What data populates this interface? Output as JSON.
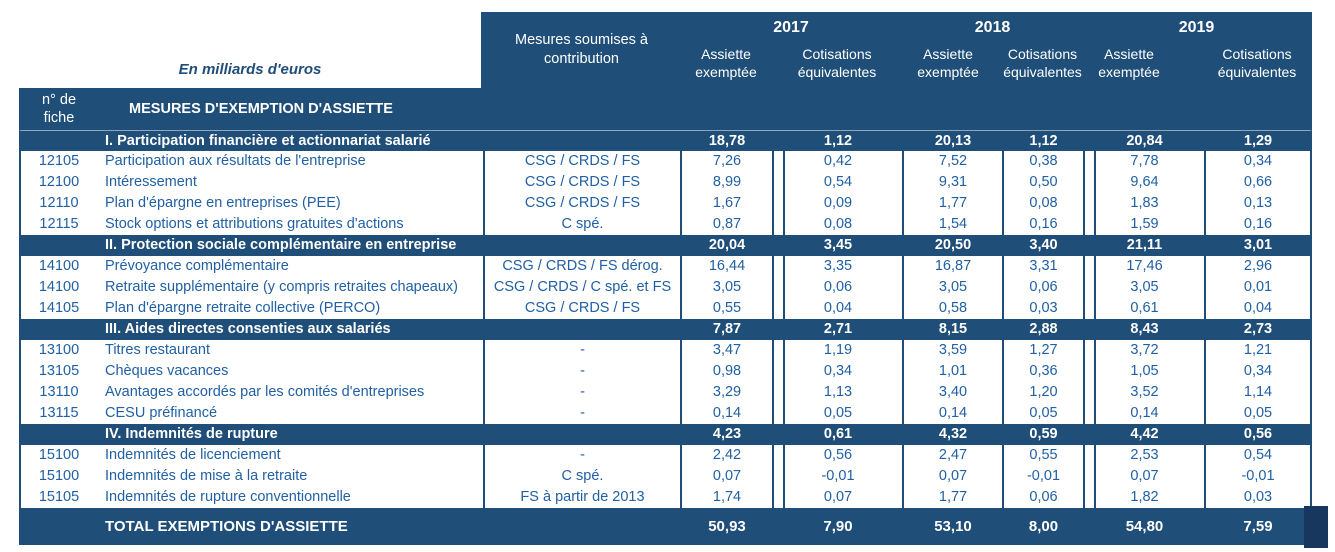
{
  "table": {
    "unit_label": "En milliards d'euros",
    "fiche_col_header": "n° de fiche",
    "measures_col_header": "MESURES D'EXEMPTION D'ASSIETTE",
    "contrib_col_header": "Mesures soumises à contribution",
    "years": [
      "2017",
      "2018",
      "2019"
    ],
    "sub_headers": [
      "Assiette exemptée",
      "Cotisations équivalentes"
    ],
    "colors": {
      "band_navy": "#1F4E79",
      "body_text_blue": "#2160A4",
      "band_text": "#FFFFFF"
    },
    "sections": [
      {
        "title": "I. Participation financière et actionnariat salarié",
        "totals": [
          "18,78",
          "1,12",
          "20,13",
          "1,12",
          "20,84",
          "1,29"
        ],
        "rows": [
          {
            "fiche": "12105",
            "label": "Participation aux résultats de l'entreprise",
            "contrib": "CSG / CRDS / FS",
            "values": [
              "7,26",
              "0,42",
              "7,52",
              "0,38",
              "7,78",
              "0,34"
            ]
          },
          {
            "fiche": "12100",
            "label": "Intéressement",
            "contrib": "CSG / CRDS / FS",
            "values": [
              "8,99",
              "0,54",
              "9,31",
              "0,50",
              "9,64",
              "0,66"
            ]
          },
          {
            "fiche": "12110",
            "label": "Plan d'épargne en entreprises (PEE)",
            "contrib": "CSG / CRDS / FS",
            "values": [
              "1,67",
              "0,09",
              "1,77",
              "0,08",
              "1,83",
              "0,13"
            ]
          },
          {
            "fiche": "12115",
            "label": "Stock options et attributions gratuites d'actions",
            "contrib": "C spé.",
            "values": [
              "0,87",
              "0,08",
              "1,54",
              "0,16",
              "1,59",
              "0,16"
            ]
          }
        ]
      },
      {
        "title": "II. Protection sociale complémentaire en entreprise",
        "totals": [
          "20,04",
          "3,45",
          "20,50",
          "3,40",
          "21,11",
          "3,01"
        ],
        "rows": [
          {
            "fiche": "14100",
            "label": "Prévoyance complémentaire",
            "contrib": "CSG / CRDS / FS dérog.",
            "values": [
              "16,44",
              "3,35",
              "16,87",
              "3,31",
              "17,46",
              "2,96"
            ]
          },
          {
            "fiche": "14100",
            "label": "Retraite supplémentaire (y compris retraites chapeaux)",
            "contrib": "CSG / CRDS / C spé. et FS",
            "values": [
              "3,05",
              "0,06",
              "3,05",
              "0,06",
              "3,05",
              "0,01"
            ]
          },
          {
            "fiche": "14105",
            "label": "Plan d'épargne retraite collective (PERCO)",
            "contrib": "CSG / CRDS / FS",
            "values": [
              "0,55",
              "0,04",
              "0,58",
              "0,03",
              "0,61",
              "0,04"
            ]
          }
        ]
      },
      {
        "title": "III. Aides directes consenties aux salariés",
        "totals": [
          "7,87",
          "2,71",
          "8,15",
          "2,88",
          "8,43",
          "2,73"
        ],
        "rows": [
          {
            "fiche": "13100",
            "label": "Titres restaurant",
            "contrib": "-",
            "values": [
              "3,47",
              "1,19",
              "3,59",
              "1,27",
              "3,72",
              "1,21"
            ]
          },
          {
            "fiche": "13105",
            "label": "Chèques vacances",
            "contrib": "-",
            "values": [
              "0,98",
              "0,34",
              "1,01",
              "0,36",
              "1,05",
              "0,34"
            ]
          },
          {
            "fiche": "13110",
            "label": "Avantages accordés par les comités d'entreprises",
            "contrib": "-",
            "values": [
              "3,29",
              "1,13",
              "3,40",
              "1,20",
              "3,52",
              "1,14"
            ]
          },
          {
            "fiche": "13115",
            "label": "CESU préfinancé",
            "contrib": "-",
            "values": [
              "0,14",
              "0,05",
              "0,14",
              "0,05",
              "0,14",
              "0,05"
            ]
          }
        ]
      },
      {
        "title": "IV. Indemnités de rupture",
        "totals": [
          "4,23",
          "0,61",
          "4,32",
          "0,59",
          "4,42",
          "0,56"
        ],
        "rows": [
          {
            "fiche": "15100",
            "label": "Indemnités de licenciement",
            "contrib": "-",
            "values": [
              "2,42",
              "0,56",
              "2,47",
              "0,55",
              "2,53",
              "0,54"
            ]
          },
          {
            "fiche": "15100",
            "label": "Indemnités de mise à la retraite",
            "contrib": "C spé.",
            "values": [
              "0,07",
              "-0,01",
              "0,07",
              "-0,01",
              "0,07",
              "-0,01"
            ]
          },
          {
            "fiche": "15105",
            "label": "Indemnités de rupture conventionnelle",
            "contrib": "FS à partir de 2013",
            "values": [
              "1,74",
              "0,07",
              "1,77",
              "0,06",
              "1,82",
              "0,03"
            ]
          }
        ]
      }
    ],
    "grand_total": {
      "label": "TOTAL EXEMPTIONS D'ASSIETTE",
      "values": [
        "50,93",
        "7,90",
        "53,10",
        "8,00",
        "54,80",
        "7,59"
      ]
    }
  }
}
